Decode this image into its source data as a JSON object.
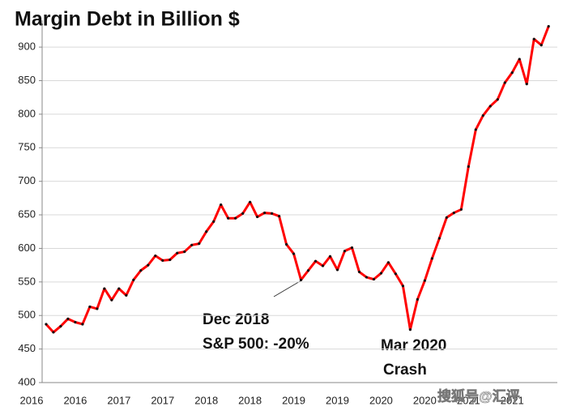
{
  "chart_data": {
    "type": "line",
    "title": "Margin Debt in Billion $",
    "x": [
      0,
      1,
      2,
      3,
      4,
      5,
      6,
      7,
      8,
      9,
      10,
      11,
      12,
      13,
      14,
      15,
      16,
      17,
      18,
      19,
      20,
      21,
      22,
      23,
      24,
      25,
      26,
      27,
      28,
      29,
      30,
      31,
      32,
      33,
      34,
      35,
      36,
      37,
      38,
      39,
      40,
      41,
      42,
      43,
      44,
      45,
      46,
      47,
      48,
      49,
      50,
      51,
      52,
      53,
      54,
      55,
      56,
      57,
      58,
      59,
      60,
      61,
      62,
      63,
      64,
      65,
      66,
      67,
      68,
      69
    ],
    "series": [
      {
        "name": "Margin Debt",
        "color": "#ff0000",
        "values": [
          487,
          475,
          484,
          495,
          490,
          487,
          513,
          510,
          540,
          523,
          540,
          530,
          553,
          567,
          575,
          589,
          582,
          583,
          593,
          595,
          605,
          607,
          625,
          640,
          665,
          645,
          645,
          652,
          669,
          647,
          653,
          652,
          648,
          606,
          592,
          553,
          567,
          581,
          574,
          588,
          568,
          596,
          601,
          565,
          557,
          554,
          563,
          579,
          562,
          544,
          479,
          524,
          552,
          585,
          615,
          646,
          653,
          658,
          722,
          777,
          798,
          812,
          822,
          847,
          862,
          882,
          845,
          912,
          903,
          931
        ]
      }
    ],
    "xlim": [
      -0.55,
      70.2
    ],
    "xticks": [
      {
        "value": -2,
        "label": "2016"
      },
      {
        "value": 4,
        "label": "2016"
      },
      {
        "value": 10,
        "label": "2017"
      },
      {
        "value": 16,
        "label": "2017"
      },
      {
        "value": 22,
        "label": "2018"
      },
      {
        "value": 28,
        "label": "2018"
      },
      {
        "value": 34,
        "label": "2019"
      },
      {
        "value": 40,
        "label": "2019"
      },
      {
        "value": 46,
        "label": "2020"
      },
      {
        "value": 52,
        "label": "2020"
      },
      {
        "value": 58,
        "label": "2021"
      },
      {
        "value": 64,
        "label": "2021"
      }
    ],
    "ylim": [
      400,
      940
    ],
    "yticks": [
      400,
      450,
      500,
      550,
      600,
      650,
      700,
      750,
      800,
      850,
      900
    ],
    "grid": true,
    "annotations": [
      "Dec 2018",
      "S&P 500: -20%",
      "Mar 2020",
      "Crash"
    ],
    "watermark": "搜狐号@汇评"
  }
}
